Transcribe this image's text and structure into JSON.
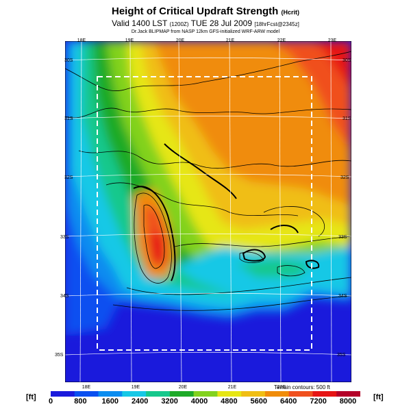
{
  "header": {
    "title": "Height of Critical Updraft Strength",
    "title_suffix": "(Hcrit)",
    "valid_line": "Valid 1400 LST",
    "valid_code": "(1200Z)",
    "valid_date": "TUE 28 Jul 2009",
    "forecast_tag": "[18hrFcst@2345z]",
    "source_line": "Dr.Jack BLIPMAP from NASP 12km GFS-initialized WRF-ARW model"
  },
  "map": {
    "lon_labels_top": [
      "18E",
      "19E",
      "20E",
      "21E",
      "22E",
      "23E"
    ],
    "lon_labels_bottom": [
      "18E",
      "19E",
      "20E",
      "21E",
      "22E"
    ],
    "lat_labels_left": [
      "30S",
      "31S",
      "32S",
      "33S",
      "34S",
      "35S"
    ],
    "lat_labels_right": [
      "30S",
      "31S",
      "32S",
      "33S",
      "34S",
      "35S"
    ],
    "terrain_note": "Terrain contours: 500 ft"
  },
  "colorbar": {
    "unit_left": "[ft]",
    "unit_right": "[ft]",
    "tick_labels": [
      "0",
      "800",
      "1600",
      "2400",
      "3200",
      "4000",
      "4800",
      "5600",
      "6400",
      "7200",
      "8000"
    ],
    "colors": [
      "#1a1adc",
      "#0a50f0",
      "#0a8cf0",
      "#16c8e6",
      "#16c88c",
      "#1eaa28",
      "#82d21e",
      "#e6e614",
      "#f0be14",
      "#f08c0a",
      "#f0501e",
      "#e61414",
      "#b40028"
    ]
  }
}
